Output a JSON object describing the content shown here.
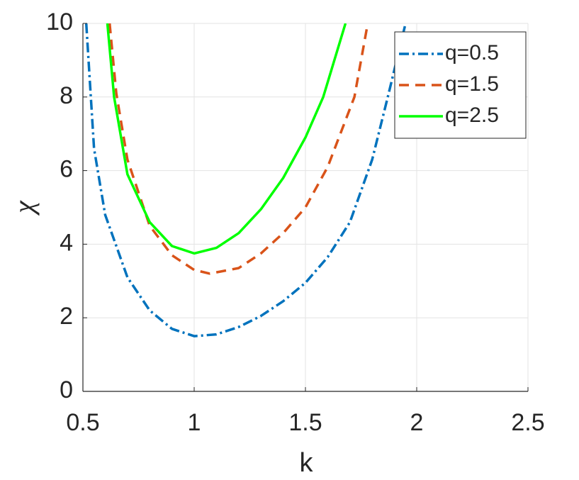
{
  "chart_data": {
    "type": "line",
    "xlabel": "k",
    "ylabel": "χ",
    "xlim": [
      0.5,
      2.5
    ],
    "ylim": [
      0,
      10
    ],
    "xticks": [
      0.5,
      1,
      1.5,
      2,
      2.5
    ],
    "yticks": [
      0,
      2,
      4,
      6,
      8,
      10
    ],
    "grid": true,
    "legend": "upper-right",
    "series": [
      {
        "name": "q=0.5",
        "color": "#0072BD",
        "dash": "dashdot",
        "x": [
          0.515,
          0.55,
          0.6,
          0.7,
          0.8,
          0.9,
          1.0,
          1.1,
          1.2,
          1.3,
          1.4,
          1.5,
          1.6,
          1.7,
          1.8,
          1.87,
          1.95
        ],
        "values": [
          10,
          6.6,
          4.8,
          3.1,
          2.2,
          1.7,
          1.5,
          1.55,
          1.75,
          2.05,
          2.45,
          2.95,
          3.65,
          4.6,
          6.3,
          8.0,
          10
        ]
      },
      {
        "name": "q=1.5",
        "color": "#D95319",
        "dash": "dashed",
        "x": [
          0.62,
          0.65,
          0.7,
          0.8,
          0.9,
          1.0,
          1.07,
          1.2,
          1.3,
          1.4,
          1.5,
          1.6,
          1.72,
          1.78
        ],
        "values": [
          10,
          8.1,
          6.3,
          4.5,
          3.7,
          3.3,
          3.2,
          3.35,
          3.75,
          4.3,
          5.0,
          6.1,
          8.0,
          10
        ]
      },
      {
        "name": "q=2.5",
        "color": "#00FF00",
        "dash": "solid",
        "x": [
          0.61,
          0.64,
          0.7,
          0.8,
          0.9,
          1.0,
          1.1,
          1.2,
          1.3,
          1.4,
          1.5,
          1.58,
          1.68
        ],
        "values": [
          10,
          8,
          5.9,
          4.6,
          3.95,
          3.75,
          3.9,
          4.3,
          4.95,
          5.8,
          6.9,
          8.0,
          10
        ]
      }
    ]
  }
}
